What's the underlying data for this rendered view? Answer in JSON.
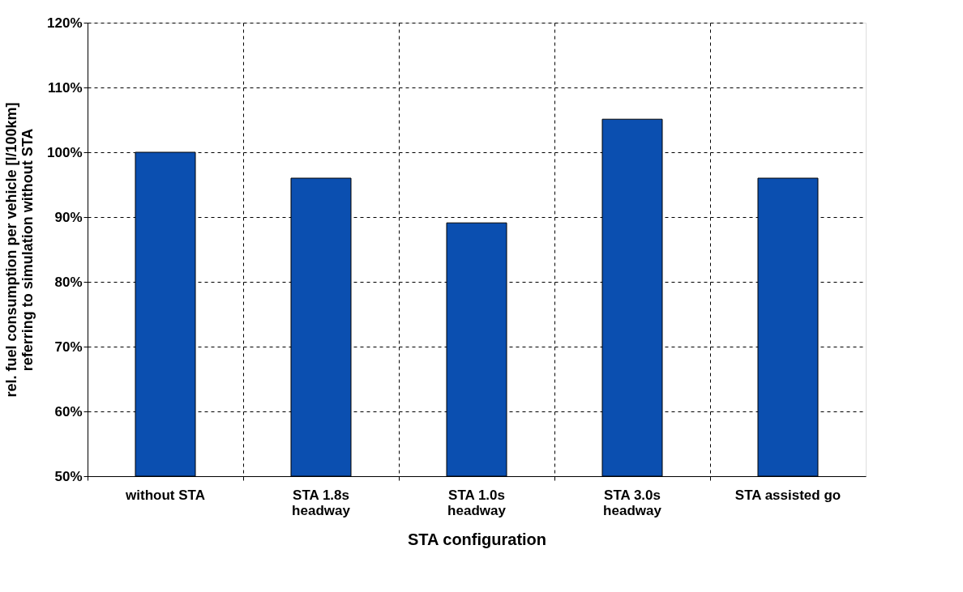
{
  "chart_data": {
    "type": "bar",
    "xlabel": "STA configuration",
    "ylabel": "rel. fuel consumption per vehicle [l/100km]\nreferring to simulation without STA",
    "categories": [
      "without STA",
      "STA 1.8s\nheadway",
      "STA 1.0s\nheadway",
      "STA 3.0s\nheadway",
      "STA assisted go"
    ],
    "values": [
      100,
      96,
      89.1,
      105.1,
      96
    ],
    "color": "#0b4fb0",
    "ylim": [
      50,
      120
    ],
    "yticks": [
      {
        "value": 50,
        "label": "50%"
      },
      {
        "value": 60,
        "label": "60%"
      },
      {
        "value": 70,
        "label": "70%"
      },
      {
        "value": 80,
        "label": "80%"
      },
      {
        "value": 90,
        "label": "90%"
      },
      {
        "value": 100,
        "label": "100%"
      },
      {
        "value": 110,
        "label": "110%"
      },
      {
        "value": 120,
        "label": "120%"
      }
    ],
    "grid": true
  }
}
